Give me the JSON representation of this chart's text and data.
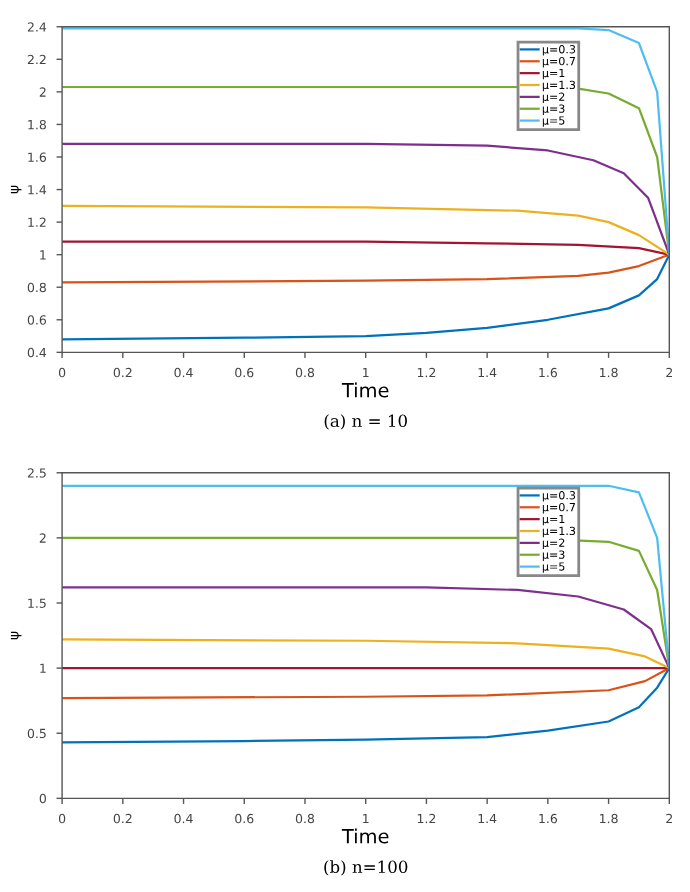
{
  "chart_data": [
    {
      "type": "line",
      "xlabel": "Time",
      "ylabel": "ψ",
      "annotations": [
        "(a) n = 10"
      ],
      "xlim": [
        0,
        2
      ],
      "ylim": [
        0.4,
        2.4
      ],
      "xticks": [
        0,
        0.2,
        0.4,
        0.6,
        0.8,
        1,
        1.2,
        1.4,
        1.6,
        1.8,
        2
      ],
      "yticks": [
        0.4,
        0.6,
        0.8,
        1,
        1.2,
        1.4,
        1.6,
        1.8,
        2,
        2.2,
        2.4
      ],
      "legend": "top right",
      "grid": false,
      "series": [
        {
          "name": "μ=0.3",
          "color": "#0072bd",
          "x": [
            0,
            0.6,
            1,
            1.2,
            1.4,
            1.6,
            1.8,
            1.9,
            1.96,
            2
          ],
          "values": [
            0.48,
            0.49,
            0.5,
            0.52,
            0.55,
            0.6,
            0.67,
            0.75,
            0.85,
            1
          ]
        },
        {
          "name": "μ=0.7",
          "color": "#d95319",
          "x": [
            0,
            1,
            1.4,
            1.7,
            1.8,
            1.9,
            2
          ],
          "values": [
            0.83,
            0.84,
            0.85,
            0.87,
            0.89,
            0.93,
            1
          ]
        },
        {
          "name": "μ=1",
          "color": "#a2142f",
          "x": [
            0,
            1,
            1.4,
            1.7,
            1.9,
            2
          ],
          "values": [
            1.08,
            1.08,
            1.07,
            1.06,
            1.04,
            1
          ]
        },
        {
          "name": "μ=1.3",
          "color": "#edb120",
          "x": [
            0,
            1,
            1.5,
            1.7,
            1.8,
            1.9,
            2
          ],
          "values": [
            1.3,
            1.29,
            1.27,
            1.24,
            1.2,
            1.12,
            1
          ]
        },
        {
          "name": "μ=2",
          "color": "#7e2f8e",
          "x": [
            0,
            1,
            1.4,
            1.6,
            1.75,
            1.85,
            1.93,
            2
          ],
          "values": [
            1.68,
            1.68,
            1.67,
            1.64,
            1.58,
            1.5,
            1.35,
            1
          ]
        },
        {
          "name": "μ=3",
          "color": "#77ac30",
          "x": [
            0,
            1.5,
            1.7,
            1.8,
            1.9,
            1.96,
            2
          ],
          "values": [
            2.03,
            2.03,
            2.02,
            1.99,
            1.9,
            1.6,
            1
          ]
        },
        {
          "name": "μ=5",
          "color": "#4dbeee",
          "x": [
            0,
            1.7,
            1.8,
            1.9,
            1.96,
            2
          ],
          "values": [
            2.39,
            2.39,
            2.38,
            2.3,
            2.0,
            1
          ]
        }
      ]
    },
    {
      "type": "line",
      "xlabel": "Time",
      "ylabel": "ψ",
      "annotations": [
        "(b) n=100"
      ],
      "xlim": [
        0,
        2
      ],
      "ylim": [
        0,
        2.5
      ],
      "xticks": [
        0,
        0.2,
        0.4,
        0.6,
        0.8,
        1,
        1.2,
        1.4,
        1.6,
        1.8,
        2
      ],
      "yticks": [
        0,
        0.5,
        1,
        1.5,
        2,
        2.5
      ],
      "legend": "top right",
      "grid": false,
      "series": [
        {
          "name": "μ=0.3",
          "color": "#0072bd",
          "x": [
            0,
            0.6,
            1,
            1.4,
            1.6,
            1.8,
            1.9,
            1.96,
            2
          ],
          "values": [
            0.43,
            0.44,
            0.45,
            0.47,
            0.52,
            0.59,
            0.7,
            0.85,
            1
          ]
        },
        {
          "name": "μ=0.7",
          "color": "#d95319",
          "x": [
            0,
            1,
            1.4,
            1.8,
            1.92,
            2
          ],
          "values": [
            0.77,
            0.78,
            0.79,
            0.83,
            0.9,
            1
          ]
        },
        {
          "name": "μ=1",
          "color": "#a2142f",
          "x": [
            0,
            2
          ],
          "values": [
            1,
            1
          ]
        },
        {
          "name": "μ=1.3",
          "color": "#edb120",
          "x": [
            0,
            1,
            1.5,
            1.8,
            1.92,
            2
          ],
          "values": [
            1.22,
            1.21,
            1.19,
            1.15,
            1.09,
            1
          ]
        },
        {
          "name": "μ=2",
          "color": "#7e2f8e",
          "x": [
            0,
            1.2,
            1.5,
            1.7,
            1.85,
            1.94,
            2
          ],
          "values": [
            1.62,
            1.62,
            1.6,
            1.55,
            1.45,
            1.3,
            1
          ]
        },
        {
          "name": "μ=3",
          "color": "#77ac30",
          "x": [
            0,
            1.5,
            1.8,
            1.9,
            1.96,
            2
          ],
          "values": [
            2.0,
            2.0,
            1.97,
            1.9,
            1.6,
            1
          ]
        },
        {
          "name": "μ=5",
          "color": "#4dbeee",
          "x": [
            0,
            1.8,
            1.9,
            1.96,
            2
          ],
          "values": [
            2.4,
            2.4,
            2.35,
            2.0,
            1
          ]
        }
      ]
    }
  ]
}
